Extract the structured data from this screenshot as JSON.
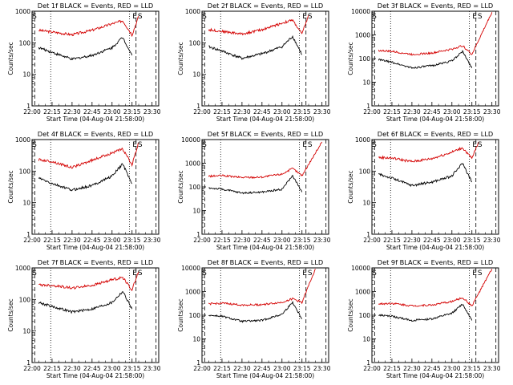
{
  "page": {
    "background": "#ffffff",
    "colors": {
      "events": "#000000",
      "lld": "#d40000",
      "axis": "#000000"
    }
  },
  "shared": {
    "ylabel": "Counts/sec",
    "xlabel": "Start Time (04-Aug-04 21:58:00)",
    "x_ticks": [
      "22:00",
      "22:15",
      "22:30",
      "22:45",
      "23:00",
      "23:15",
      "23:30"
    ],
    "y_scale": "log",
    "markers": [
      {
        "label": "S",
        "position": "left"
      },
      {
        "label": "E",
        "position": "right"
      },
      {
        "label": "S",
        "position": "right"
      }
    ]
  },
  "chart_data": [
    {
      "type": "line",
      "title": "Det 1f BLACK = Events, RED = LLD",
      "ylim": [
        1,
        1000
      ],
      "y_ticks": [
        "1",
        "10",
        "100",
        "1000"
      ],
      "x_ticks": [
        "22:00",
        "22:15",
        "22:30",
        "22:45",
        "23:00",
        "23:15",
        "23:30"
      ],
      "xlabel": "",
      "ylabel": "Counts/sec",
      "series": [
        {
          "x": [
            "22:05",
            "22:15",
            "22:30",
            "22:45",
            "23:00",
            "23:08",
            "23:15",
            "23:20"
          ],
          "values": [
            250,
            220,
            180,
            250,
            400,
            500,
            180,
            700
          ]
        },
        {
          "x": [
            "22:05",
            "22:15",
            "22:30",
            "22:45",
            "23:00",
            "23:08",
            "23:15"
          ],
          "values": [
            70,
            50,
            30,
            40,
            70,
            150,
            40
          ]
        }
      ]
    },
    {
      "type": "line",
      "title": "Det 2f BLACK = Events, RED = LLD",
      "ylim": [
        1,
        1000
      ],
      "y_ticks": [
        "1",
        "10",
        "100",
        "1000"
      ],
      "x_ticks": [
        "22:00",
        "22:15",
        "22:30",
        "22:45",
        "23:00",
        "23:15",
        "23:30"
      ],
      "xlabel": "",
      "ylabel": "Counts/sec",
      "series": [
        {
          "x": [
            "22:05",
            "22:15",
            "22:30",
            "22:45",
            "23:00",
            "23:08",
            "23:15",
            "23:20"
          ],
          "values": [
            260,
            230,
            190,
            260,
            420,
            520,
            190,
            750
          ]
        },
        {
          "x": [
            "22:05",
            "22:15",
            "22:30",
            "22:45",
            "23:00",
            "23:08",
            "23:15"
          ],
          "values": [
            75,
            55,
            32,
            45,
            75,
            160,
            42
          ]
        }
      ]
    },
    {
      "type": "line",
      "title": "Det 3f BLACK = Events, RED = LLD",
      "ylim": [
        1,
        10000
      ],
      "y_ticks": [
        "1",
        "10",
        "100",
        "1000",
        "10000"
      ],
      "x_ticks": [
        "22:00",
        "22:15",
        "22:30",
        "22:45",
        "23:00",
        "23:15",
        "23:30"
      ],
      "xlabel": "",
      "ylabel": "Counts/sec",
      "series": [
        {
          "x": [
            "22:05",
            "22:15",
            "22:30",
            "22:45",
            "23:00",
            "23:08",
            "23:15",
            "23:30"
          ],
          "values": [
            220,
            200,
            150,
            170,
            250,
            350,
            150,
            9000
          ]
        },
        {
          "x": [
            "22:05",
            "22:15",
            "22:30",
            "22:45",
            "23:00",
            "23:08",
            "23:15"
          ],
          "values": [
            90,
            70,
            40,
            50,
            80,
            200,
            40
          ]
        }
      ]
    },
    {
      "type": "line",
      "title": "Det 4f BLACK = Events, RED = LLD",
      "ylim": [
        1,
        1000
      ],
      "y_ticks": [
        "1",
        "10",
        "100",
        "1000"
      ],
      "x_ticks": [
        "22:00",
        "22:15",
        "22:30",
        "22:45",
        "23:00",
        "23:15",
        "23:30"
      ],
      "xlabel": "",
      "ylabel": "Counts/sec",
      "series": [
        {
          "x": [
            "22:05",
            "22:15",
            "22:30",
            "22:45",
            "23:00",
            "23:08",
            "23:15",
            "23:20"
          ],
          "values": [
            230,
            200,
            130,
            220,
            380,
            500,
            160,
            800
          ]
        },
        {
          "x": [
            "22:05",
            "22:15",
            "22:30",
            "22:45",
            "23:00",
            "23:08",
            "23:15"
          ],
          "values": [
            60,
            40,
            25,
            35,
            70,
            170,
            40
          ]
        }
      ]
    },
    {
      "type": "line",
      "title": "Det 5f BLACK = Events, RED = LLD",
      "ylim": [
        1,
        10000
      ],
      "y_ticks": [
        "1",
        "10",
        "100",
        "1000",
        "10000"
      ],
      "x_ticks": [
        "22:00",
        "22:15",
        "22:30",
        "22:45",
        "23:00",
        "23:15",
        "23:30"
      ],
      "xlabel": "",
      "ylabel": "Counts/sec",
      "series": [
        {
          "x": [
            "22:05",
            "22:15",
            "22:30",
            "22:45",
            "23:00",
            "23:08",
            "23:15",
            "23:30"
          ],
          "values": [
            280,
            300,
            250,
            260,
            350,
            600,
            300,
            8000
          ]
        },
        {
          "x": [
            "22:05",
            "22:15",
            "22:30",
            "22:45",
            "23:00",
            "23:08",
            "23:15"
          ],
          "values": [
            90,
            80,
            55,
            60,
            80,
            300,
            60
          ]
        }
      ]
    },
    {
      "type": "line",
      "title": "Det 6f BLACK = Events, RED = LLD",
      "ylim": [
        1,
        1000
      ],
      "y_ticks": [
        "1",
        "10",
        "100",
        "1000"
      ],
      "x_ticks": [
        "22:00",
        "22:15",
        "22:30",
        "22:45",
        "23:00",
        "23:15",
        "23:30"
      ],
      "xlabel": "",
      "ylabel": "Counts/sec",
      "series": [
        {
          "x": [
            "22:05",
            "22:15",
            "22:30",
            "22:45",
            "23:00",
            "23:08",
            "23:15",
            "23:20"
          ],
          "values": [
            270,
            260,
            200,
            250,
            400,
            550,
            250,
            850
          ]
        },
        {
          "x": [
            "22:05",
            "22:15",
            "22:30",
            "22:45",
            "23:00",
            "23:08",
            "23:15"
          ],
          "values": [
            80,
            60,
            35,
            45,
            70,
            180,
            45
          ]
        }
      ]
    },
    {
      "type": "line",
      "title": "Det 7f BLACK = Events, RED = LLD",
      "ylim": [
        1,
        1000
      ],
      "y_ticks": [
        "1",
        "10",
        "100",
        "1000"
      ],
      "x_ticks": [
        "22:00",
        "22:15",
        "22:30",
        "22:45",
        "23:00",
        "23:15",
        "23:30"
      ],
      "xlabel": "",
      "ylabel": "Counts/sec",
      "series": [
        {
          "x": [
            "22:05",
            "22:15",
            "22:30",
            "22:45",
            "23:00",
            "23:08",
            "23:15",
            "23:20"
          ],
          "values": [
            290,
            280,
            230,
            280,
            420,
            500,
            200,
            800
          ]
        },
        {
          "x": [
            "22:05",
            "22:15",
            "22:30",
            "22:45",
            "23:00",
            "23:08",
            "23:15"
          ],
          "values": [
            80,
            60,
            40,
            50,
            80,
            180,
            50
          ]
        }
      ]
    },
    {
      "type": "line",
      "title": "Det 8f BLACK = Events, RED = LLD",
      "ylim": [
        1,
        10000
      ],
      "y_ticks": [
        "1",
        "10",
        "100",
        "1000",
        "10000"
      ],
      "x_ticks": [
        "22:00",
        "22:15",
        "22:30",
        "22:45",
        "23:00",
        "23:15",
        "23:30"
      ],
      "xlabel": "",
      "ylabel": "Counts/sec",
      "series": [
        {
          "x": [
            "22:05",
            "22:15",
            "22:30",
            "22:45",
            "23:00",
            "23:08",
            "23:15",
            "23:25"
          ],
          "values": [
            300,
            320,
            270,
            280,
            350,
            500,
            350,
            9000
          ]
        },
        {
          "x": [
            "22:05",
            "22:15",
            "22:30",
            "22:45",
            "23:00",
            "23:08",
            "23:15"
          ],
          "values": [
            100,
            90,
            55,
            60,
            110,
            350,
            70
          ]
        }
      ]
    },
    {
      "type": "line",
      "title": "Det 9f BLACK = Events, RED = LLD",
      "ylim": [
        1,
        10000
      ],
      "y_ticks": [
        "1",
        "10",
        "100",
        "1000",
        "10000"
      ],
      "x_ticks": [
        "22:00",
        "22:15",
        "22:30",
        "22:45",
        "23:00",
        "23:15",
        "23:30"
      ],
      "xlabel": "",
      "ylabel": "Counts/sec",
      "series": [
        {
          "x": [
            "22:05",
            "22:15",
            "22:30",
            "22:45",
            "23:00",
            "23:08",
            "23:15",
            "23:30"
          ],
          "values": [
            300,
            320,
            250,
            270,
            380,
            550,
            250,
            9000
          ]
        },
        {
          "x": [
            "22:05",
            "22:15",
            "22:30",
            "22:45",
            "23:00",
            "23:08",
            "23:15"
          ],
          "values": [
            100,
            90,
            60,
            70,
            120,
            300,
            60
          ]
        }
      ]
    }
  ]
}
